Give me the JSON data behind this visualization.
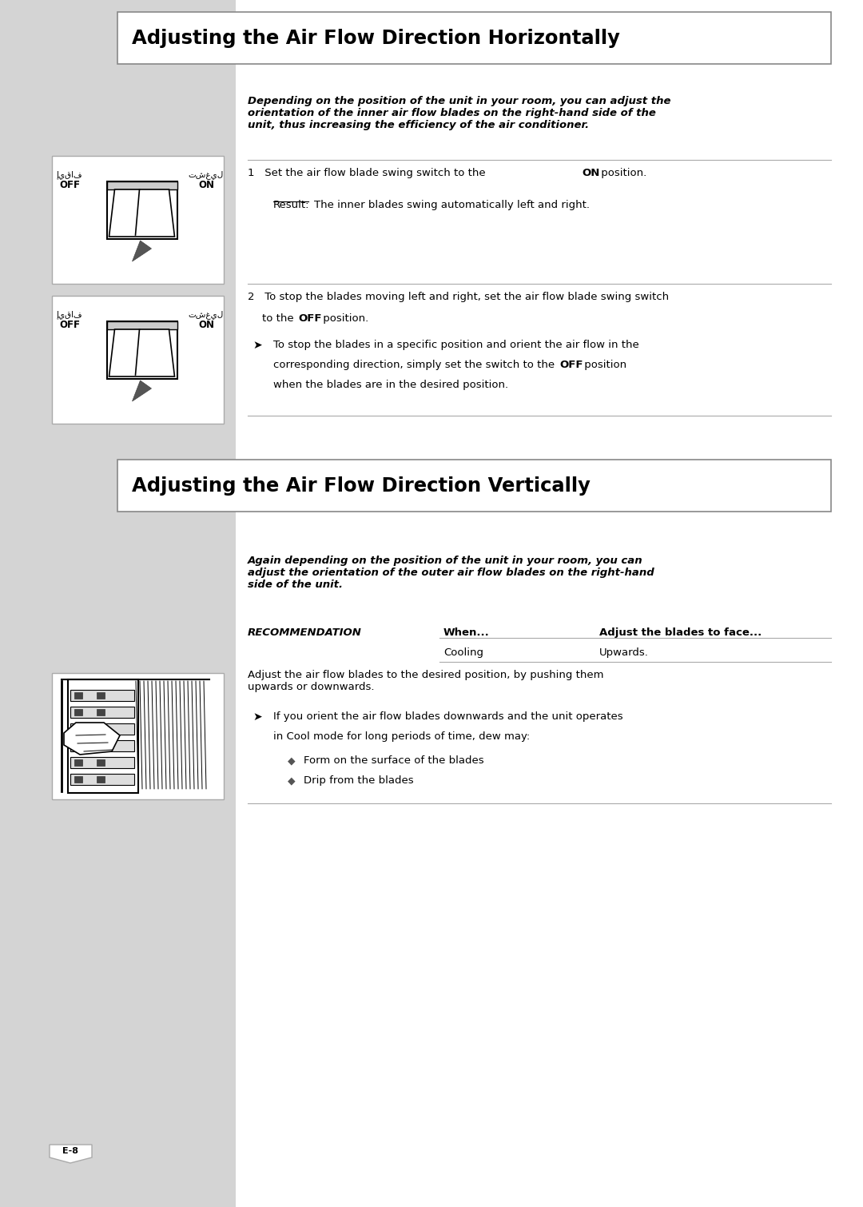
{
  "title1": "Adjusting the Air Flow Direction Horizontally",
  "title2": "Adjusting the Air Flow Direction Vertically",
  "bg_left": "#d4d4d4",
  "bg_right": "#ffffff",
  "para1_italic": "Depending on the position of the unit in your room, you can adjust the\norientation of the inner air flow blades on the right-hand side of the\nunit, thus increasing the efficiency of the air conditioner.",
  "para2_italic": "Again depending on the position of the unit in your room, you can\nadjust the orientation of the outer air flow blades on the right-hand\nside of the unit.",
  "rec_label": "RECOMMENDATION",
  "rec_when": "When...",
  "rec_adjust": "Adjust the blades to face...",
  "rec_cooling": "Cooling",
  "rec_upwards": "Upwards.",
  "adjust_text": "Adjust the air flow blades to the desired position, by pushing them\nupwards or downwards.",
  "bullet2a": "Form on the surface of the blades",
  "bullet2b": "Drip from the blades",
  "page_num": "E-8",
  "off_label": "OFF",
  "on_label": "ON",
  "ar_off": "إيقاف",
  "ar_on": "تشغيل"
}
